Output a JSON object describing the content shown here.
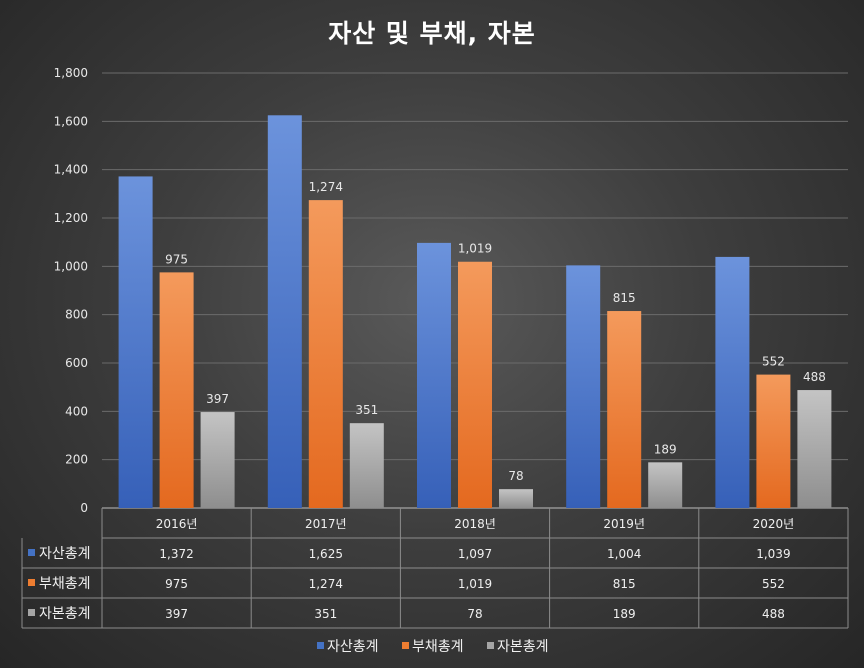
{
  "chart_data": {
    "type": "bar",
    "title": "자산 및 부채, 자본",
    "categories": [
      "2016년",
      "2017년",
      "2018년",
      "2019년",
      "2020년"
    ],
    "ylim": [
      0,
      1800
    ],
    "yticks": [
      "0",
      "200",
      "400",
      "600",
      "800",
      "1,000",
      "1,200",
      "1,400",
      "1,600",
      "1,800"
    ],
    "grid": true,
    "legend": "bottom",
    "series": [
      {
        "name": "자산총계",
        "color": "#4472c4",
        "values": [
          1372,
          1625,
          1097,
          1004,
          1039
        ],
        "display": [
          "1,372",
          "1,625",
          "1,097",
          "1,004",
          "1,039"
        ],
        "bar_labels": [
          "",
          "",
          "",
          "",
          ""
        ]
      },
      {
        "name": "부채총계",
        "color": "#ed7d31",
        "values": [
          975,
          1274,
          1019,
          815,
          552
        ],
        "display": [
          "975",
          "1,274",
          "1,019",
          "815",
          "552"
        ],
        "bar_labels": [
          "975",
          "1,274",
          "1,019",
          "815",
          "552"
        ]
      },
      {
        "name": "자본총계",
        "color": "#a5a5a5",
        "values": [
          397,
          351,
          78,
          189,
          488
        ],
        "display": [
          "397",
          "351",
          "78",
          "189",
          "488"
        ],
        "bar_labels": [
          "397",
          "351",
          "78",
          "189",
          "488"
        ]
      }
    ]
  }
}
